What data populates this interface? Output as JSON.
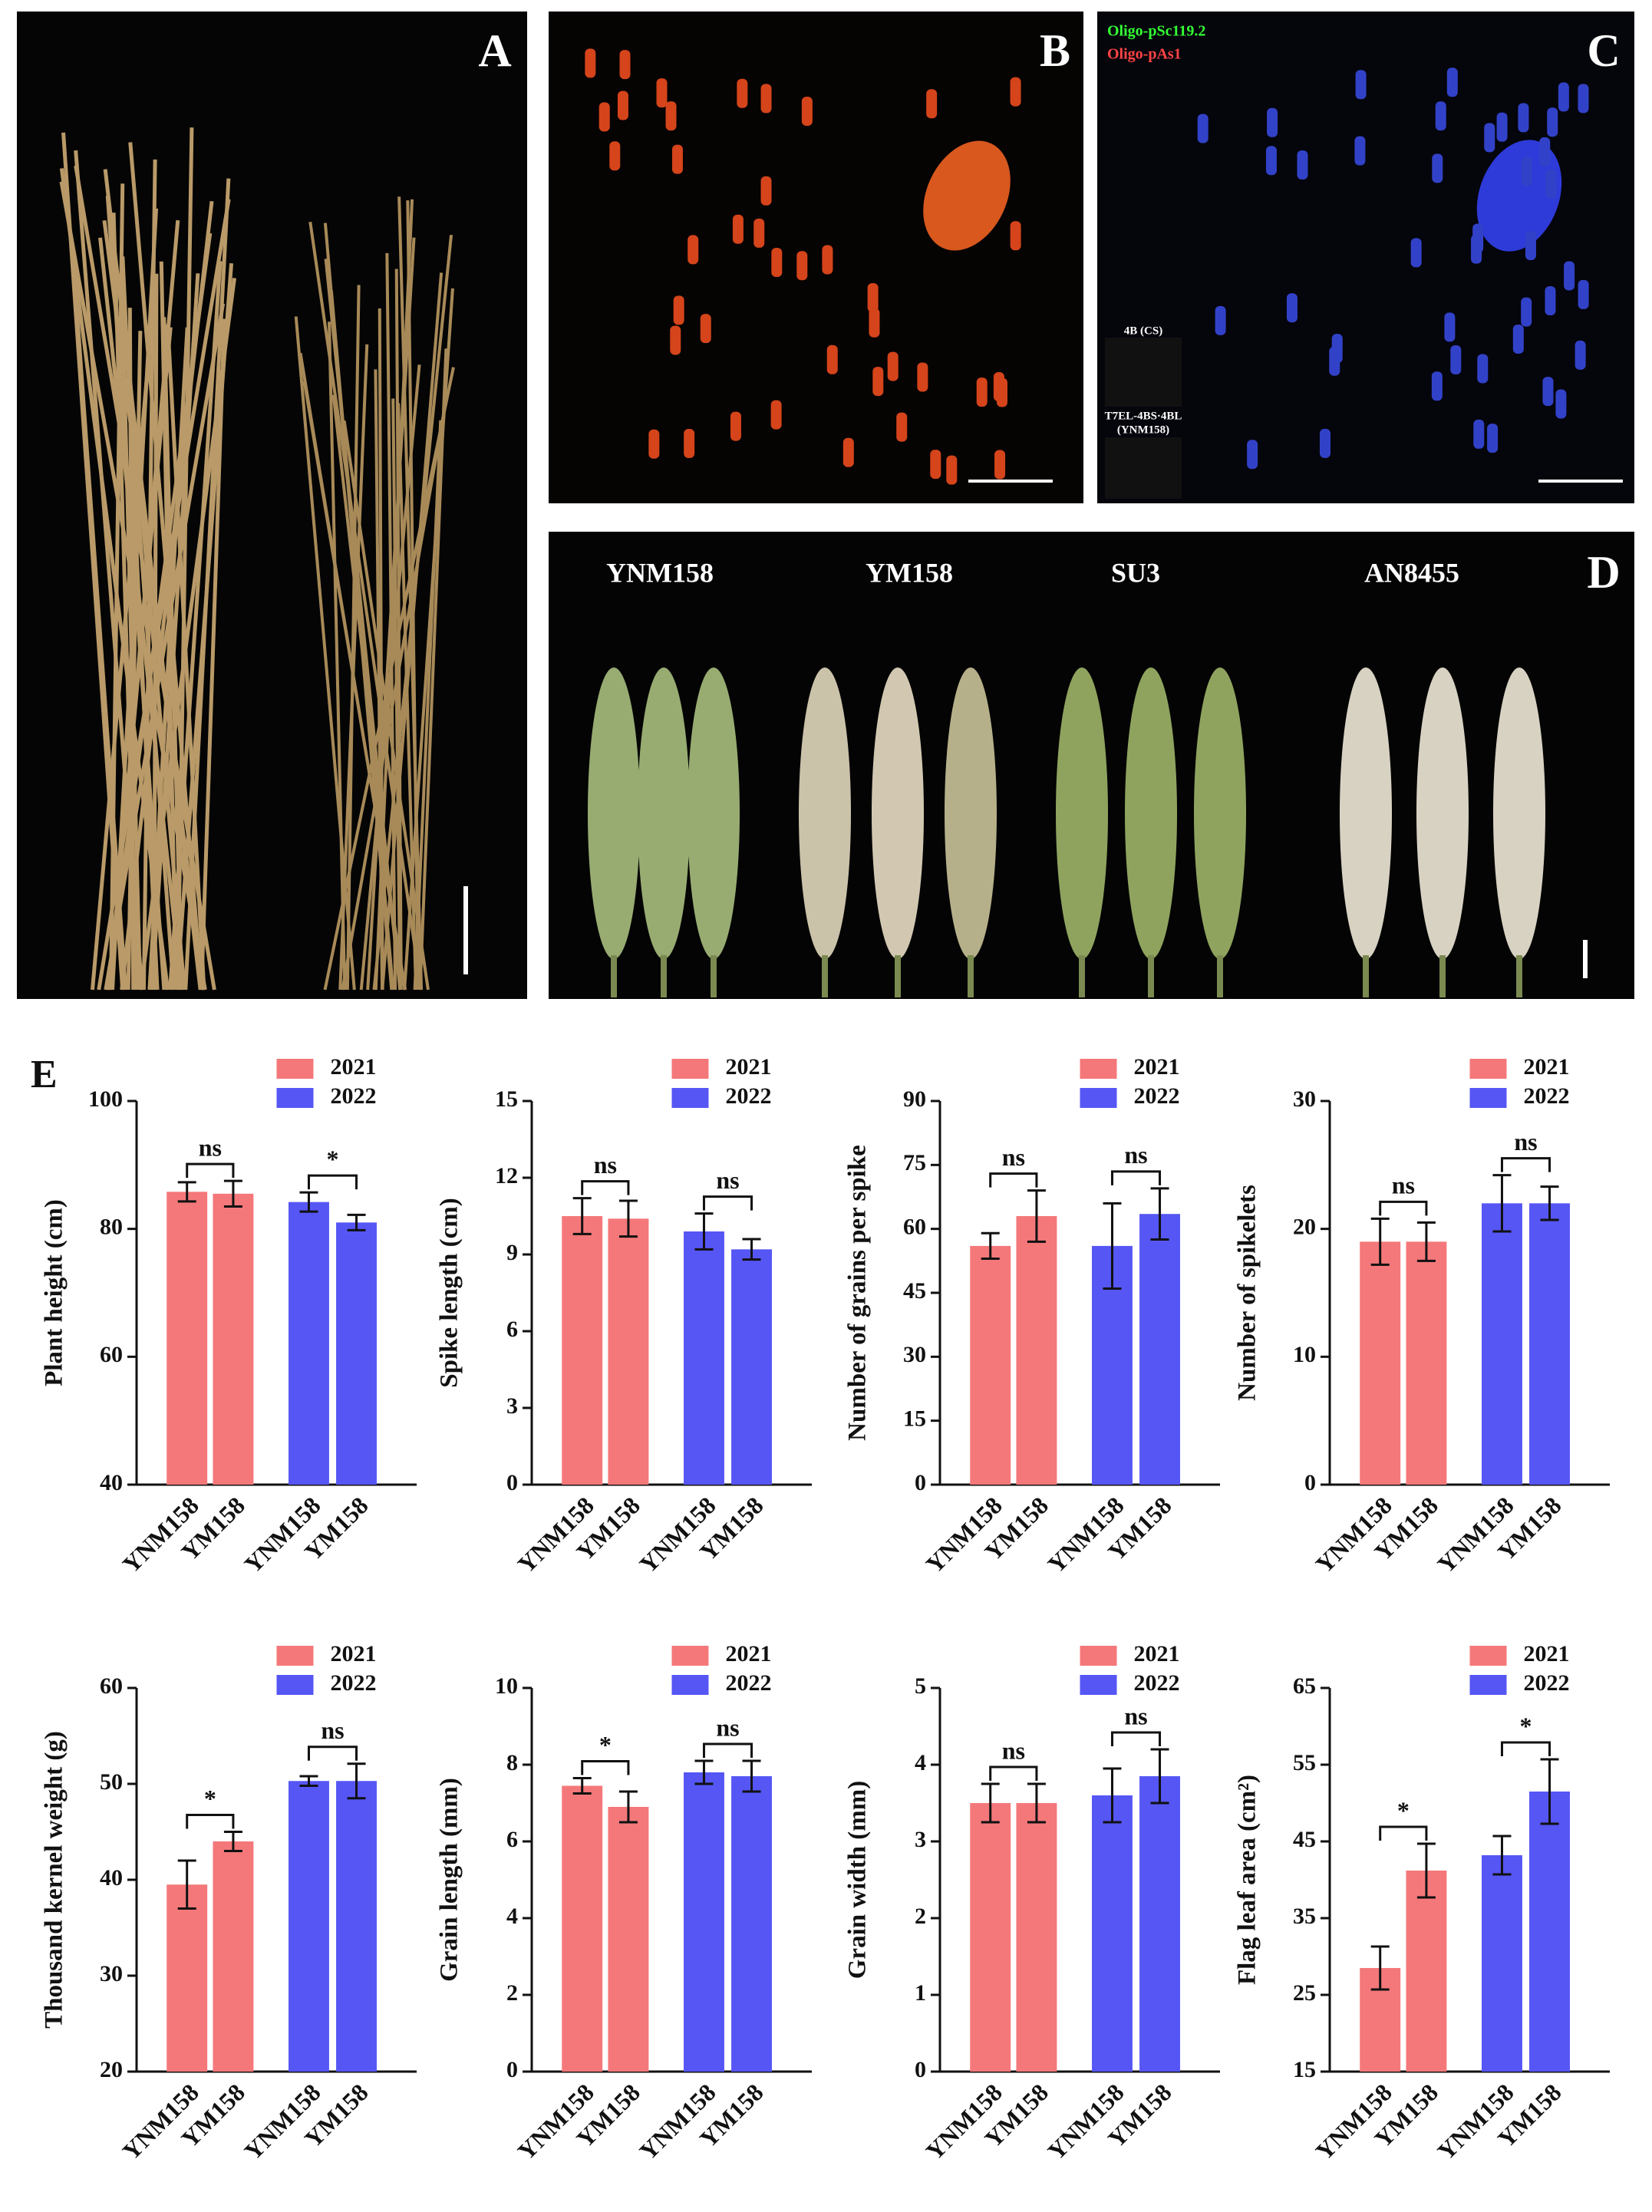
{
  "panel_labels": [
    "A",
    "B",
    "C",
    "D",
    "E"
  ],
  "probes": [
    "Oligo-pSc119.2",
    "Oligo-pAs1"
  ],
  "insets": [
    "4B (CS)",
    "T7EL-4BS·4BL",
    "(YNM158)"
  ],
  "cultivars": [
    "YNM158",
    "YM158",
    "SU3",
    "AN8455"
  ],
  "chart_data": [
    {
      "type": "bar",
      "ylabel": "Plant height (cm)",
      "categories": [
        "YNM158",
        "YM158",
        "YNM158",
        "YM158"
      ],
      "series": [
        {
          "name": "2021",
          "color": "#f4787a",
          "values": [
            85.8,
            85.5,
            null,
            null
          ],
          "errors": [
            1.5,
            2,
            null,
            null
          ]
        },
        {
          "name": "2022",
          "color": "#5656f5",
          "values": [
            null,
            null,
            84.2,
            81
          ],
          "errors": [
            null,
            null,
            1.5,
            1.2
          ]
        }
      ],
      "significance": [
        "ns",
        "*"
      ],
      "ylim": [
        40,
        100
      ],
      "yticks": [
        40,
        60,
        80,
        100
      ]
    },
    {
      "type": "bar",
      "ylabel": "Spike length (cm)",
      "categories": [
        "YNM158",
        "YM158",
        "YNM158",
        "YM158"
      ],
      "series": [
        {
          "name": "2021",
          "color": "#f4787a",
          "values": [
            10.5,
            10.4,
            null,
            null
          ],
          "errors": [
            0.7,
            0.7,
            null,
            null
          ]
        },
        {
          "name": "2022",
          "color": "#5656f5",
          "values": [
            null,
            null,
            9.9,
            9.2
          ],
          "errors": [
            null,
            null,
            0.7,
            0.4
          ]
        }
      ],
      "significance": [
        "ns",
        "ns"
      ],
      "ylim": [
        0,
        15
      ],
      "yticks": [
        0,
        3,
        6,
        9,
        12,
        15
      ]
    },
    {
      "type": "bar",
      "ylabel": "Number of grains per spike",
      "categories": [
        "YNM158",
        "YM158",
        "YNM158",
        "YM158"
      ],
      "series": [
        {
          "name": "2021",
          "color": "#f4787a",
          "values": [
            56,
            63,
            null,
            null
          ],
          "errors": [
            3,
            6,
            null,
            null
          ]
        },
        {
          "name": "2022",
          "color": "#5656f5",
          "values": [
            null,
            null,
            56,
            63.5
          ],
          "errors": [
            null,
            null,
            10,
            6
          ]
        }
      ],
      "significance": [
        "ns",
        "ns"
      ],
      "ylim": [
        0,
        90
      ],
      "yticks": [
        0,
        15,
        30,
        45,
        60,
        75,
        90
      ]
    },
    {
      "type": "bar",
      "ylabel": "Number of spikelets",
      "categories": [
        "YNM158",
        "YM158",
        "YNM158",
        "YM158"
      ],
      "series": [
        {
          "name": "2021",
          "color": "#f4787a",
          "values": [
            19,
            19,
            null,
            null
          ],
          "errors": [
            1.8,
            1.5,
            null,
            null
          ]
        },
        {
          "name": "2022",
          "color": "#5656f5",
          "values": [
            null,
            null,
            22,
            22
          ],
          "errors": [
            null,
            null,
            2.2,
            1.3
          ]
        }
      ],
      "significance": [
        "ns",
        "ns"
      ],
      "ylim": [
        0,
        30
      ],
      "yticks": [
        0,
        10,
        20,
        30
      ]
    },
    {
      "type": "bar",
      "ylabel": "Thousand kernel weight (g)",
      "categories": [
        "YNM158",
        "YM158",
        "YNM158",
        "YM158"
      ],
      "series": [
        {
          "name": "2021",
          "color": "#f4787a",
          "values": [
            39.5,
            44,
            null,
            null
          ],
          "errors": [
            2.5,
            1,
            null,
            null
          ]
        },
        {
          "name": "2022",
          "color": "#5656f5",
          "values": [
            null,
            null,
            50.3,
            50.3
          ],
          "errors": [
            null,
            null,
            0.5,
            1.8
          ]
        }
      ],
      "significance": [
        "*",
        "ns"
      ],
      "ylim": [
        20,
        60
      ],
      "yticks": [
        20,
        30,
        40,
        50,
        60
      ]
    },
    {
      "type": "bar",
      "ylabel": "Grain length (mm)",
      "categories": [
        "YNM158",
        "YM158",
        "YNM158",
        "YM158"
      ],
      "series": [
        {
          "name": "2021",
          "color": "#f4787a",
          "values": [
            7.45,
            6.9,
            null,
            null
          ],
          "errors": [
            0.2,
            0.4,
            null,
            null
          ]
        },
        {
          "name": "2022",
          "color": "#5656f5",
          "values": [
            null,
            null,
            7.8,
            7.7
          ],
          "errors": [
            null,
            null,
            0.3,
            0.4
          ]
        }
      ],
      "significance": [
        "*",
        "ns"
      ],
      "ylim": [
        0,
        10
      ],
      "yticks": [
        0,
        2,
        4,
        6,
        8,
        10
      ]
    },
    {
      "type": "bar",
      "ylabel": "Grain width (mm)",
      "categories": [
        "YNM158",
        "YM158",
        "YNM158",
        "YM158"
      ],
      "series": [
        {
          "name": "2021",
          "color": "#f4787a",
          "values": [
            3.5,
            3.5,
            null,
            null
          ],
          "errors": [
            0.25,
            0.25,
            null,
            null
          ]
        },
        {
          "name": "2022",
          "color": "#5656f5",
          "values": [
            null,
            null,
            3.6,
            3.85
          ],
          "errors": [
            null,
            null,
            0.35,
            0.35
          ]
        }
      ],
      "significance": [
        "ns",
        "ns"
      ],
      "ylim": [
        0,
        5
      ],
      "yticks": [
        0,
        1,
        2,
        3,
        4,
        5
      ]
    },
    {
      "type": "bar",
      "ylabel": "Flag leaf area (cm²)",
      "categories": [
        "YNM158",
        "YM158",
        "YNM158",
        "YM158"
      ],
      "series": [
        {
          "name": "2021",
          "color": "#f4787a",
          "values": [
            28.5,
            41.2,
            null,
            null
          ],
          "errors": [
            2.8,
            3.5,
            null,
            null
          ]
        },
        {
          "name": "2022",
          "color": "#5656f5",
          "values": [
            null,
            null,
            43.2,
            51.5
          ],
          "errors": [
            null,
            null,
            2.5,
            4.2
          ]
        }
      ],
      "significance": [
        "*",
        "*"
      ],
      "ylim": [
        15,
        65
      ],
      "yticks": [
        15,
        25,
        35,
        45,
        55,
        65
      ]
    }
  ]
}
